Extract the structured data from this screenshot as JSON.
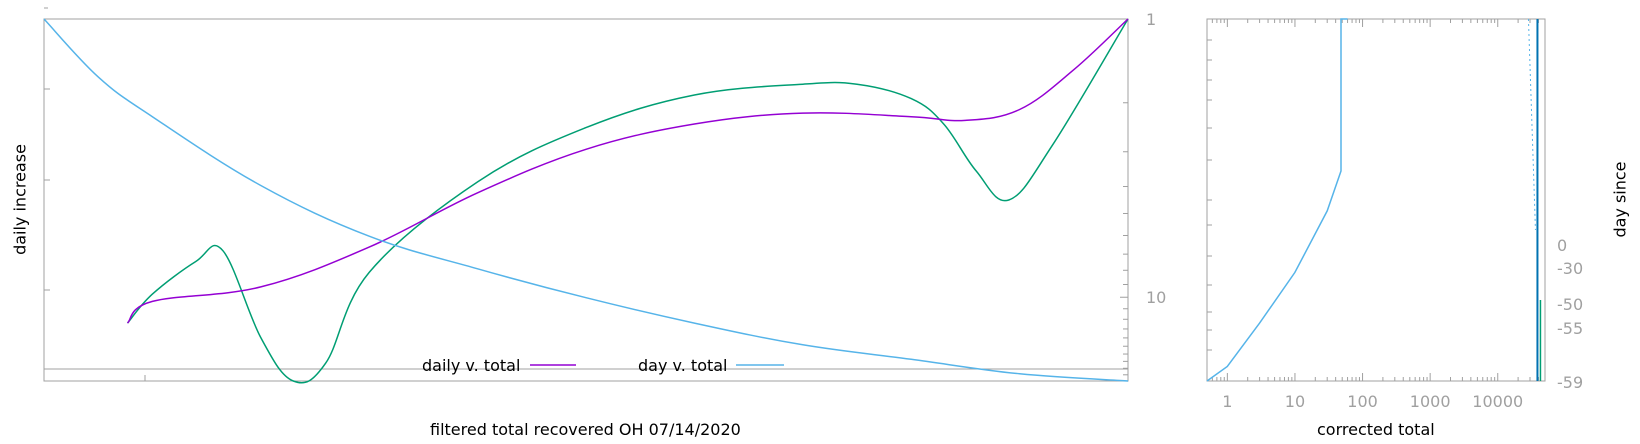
{
  "colors": {
    "daily_total": "#9400d3",
    "day_total": "#56b4e9",
    "green_series": "#009e73",
    "axis": "#a0a0a0",
    "tick_label": "#a0a0a0",
    "text": "#000000"
  },
  "chart_data": [
    {
      "type": "line",
      "xlabel": "filtered total recovered OH 07/14/2020",
      "ylabel": "daily increase",
      "y2_scale": "log",
      "y2_tick_labels": [
        "1",
        "10"
      ],
      "legend": {
        "placement": "bottom-center",
        "entries": [
          "daily v. total",
          "day v. total"
        ]
      },
      "series": [
        {
          "name": "daily v. total",
          "color": "#9400d3",
          "x": [
            0.077,
            0.1,
            0.2,
            0.3,
            0.4,
            0.5,
            0.6,
            0.7,
            0.8,
            0.85,
            0.9,
            0.95,
            1.0
          ],
          "y": [
            0.16,
            0.22,
            0.26,
            0.37,
            0.52,
            0.64,
            0.71,
            0.74,
            0.73,
            0.72,
            0.75,
            0.86,
            1.0
          ]
        },
        {
          "color": "#56b4e9",
          "x": [
            0.0,
            0.05,
            0.1,
            0.2,
            0.3,
            0.4,
            0.5,
            0.6,
            0.7,
            0.8,
            0.9,
            1.0
          ],
          "y": [
            1.0,
            0.84,
            0.73,
            0.54,
            0.4,
            0.31,
            0.23,
            0.16,
            0.1,
            0.06,
            0.02,
            0.0
          ]
        },
        {
          "color": "#009e73",
          "x": [
            0.077,
            0.1,
            0.14,
            0.165,
            0.2,
            0.23,
            0.26,
            0.3,
            0.4,
            0.5,
            0.6,
            0.7,
            0.75,
            0.8,
            0.83,
            0.86,
            0.89,
            0.93,
            1.0
          ],
          "y": [
            0.16,
            0.24,
            0.33,
            0.36,
            0.12,
            0.0,
            0.05,
            0.3,
            0.55,
            0.7,
            0.79,
            0.82,
            0.82,
            0.78,
            0.71,
            0.58,
            0.5,
            0.65,
            1.0
          ]
        }
      ]
    },
    {
      "type": "line",
      "xlabel": "corrected total",
      "ylabel": "day since",
      "x_scale": "log",
      "x_tick_labels": [
        "1",
        "10",
        "100",
        "1000",
        "10000"
      ],
      "y2_tick_labels": [
        "0",
        "-30",
        "-50",
        "-55",
        "-59"
      ],
      "series": [
        {
          "color": "#56b4e9",
          "x": [
            0.5,
            1,
            3,
            10,
            30,
            48,
            48,
            60
          ],
          "y": [
            0.0,
            0.04,
            0.16,
            0.3,
            0.47,
            0.58,
            1.0,
            1.0
          ]
        }
      ]
    }
  ]
}
